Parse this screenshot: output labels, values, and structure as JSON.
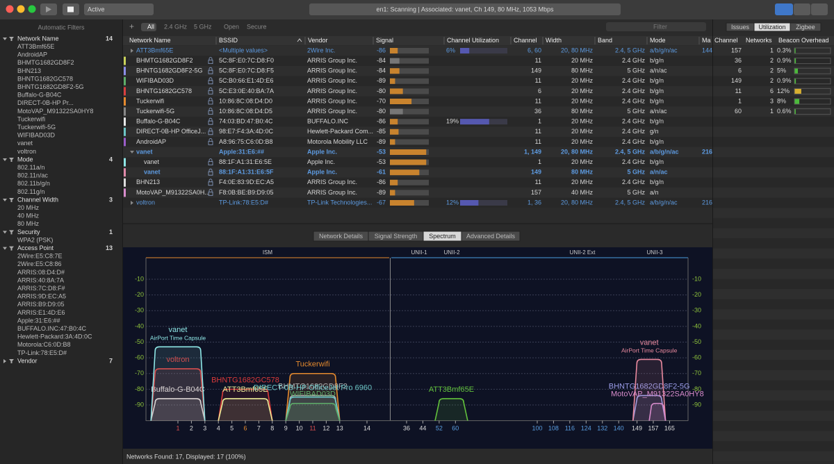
{
  "toolbar": {
    "mode": "Active",
    "status": "en1: Scanning  |  Associated: vanet, Ch 149, 80 MHz, 1053 Mbps"
  },
  "sidebar": {
    "title": "Automatic Filters",
    "groups": [
      {
        "name": "Network Name",
        "count": 14,
        "items": [
          "ATT3Bmf65E",
          "AndroidAP",
          "BHMTG1682GD8F2",
          "BHN213",
          "BHNTG1682GC578",
          "BHNTG1682GD8F2-5G",
          "Buffalo-G-B04C",
          "DIRECT-0B-HP Pr...",
          "MotoVAP_M91322SA0HY8",
          "Tuckerwifi",
          "Tuckerwifi-5G",
          "WIFIBAD03D",
          "vanet",
          "voltron"
        ]
      },
      {
        "name": "Mode",
        "count": 4,
        "items": [
          "802.11a/n",
          "802.11n/ac",
          "802.11b/g/n",
          "802.11g/n"
        ]
      },
      {
        "name": "Channel Width",
        "count": 3,
        "items": [
          "20 MHz",
          "40 MHz",
          "80 MHz"
        ]
      },
      {
        "name": "Security",
        "count": 1,
        "items": [
          "WPA2 (PSK)"
        ]
      },
      {
        "name": "Access Point",
        "count": 13,
        "items": [
          "2Wire:E5:C8:7E",
          "2Wire:E5:C8:86",
          "ARRIS:08:D4:D#",
          "ARRIS:40:8A:7A",
          "ARRIS:7C:D8:F#",
          "ARRIS:9D:EC:A5",
          "ARRIS:B9:D9:05",
          "ARRIS:E1:4D:E6",
          "Apple:31:E6:##",
          "BUFFALO.INC:47:B0:4C",
          "Hewlett-Packard:3A:4D:0C",
          "Motorola:C6:0D:B8",
          "TP-Link:78:E5:D#"
        ]
      },
      {
        "name": "Vendor",
        "count": 7
      }
    ]
  },
  "filters": {
    "add": "+",
    "options": [
      "All",
      "2.4 GHz",
      "5 GHz",
      "Open",
      "Secure"
    ],
    "search": "Filter"
  },
  "table": {
    "columns": [
      "Network Name",
      "BSSID",
      "Vendor",
      "Signal",
      "Channel Utilization",
      "Channel",
      "Width",
      "Band",
      "Mode",
      "Ma"
    ],
    "rows": [
      {
        "cells": [
          "ATT3Bmf65E",
          "<Multiple values>",
          "2Wire Inc.",
          -86,
          "6%",
          "6, 60",
          "20, 80 MHz",
          "2.4, 5 GHz",
          "a/b/g/n/ac",
          144
        ]
      },
      {
        "cells": [
          "BHMTG1682GD8F2",
          "5C:8F:E0:7C:D8:F0",
          "ARRIS Group Inc.",
          -84,
          null,
          "11",
          "20 MHz",
          "2.4 GHz",
          "b/g/n",
          null
        ],
        "color": "#c9d25a"
      },
      {
        "cells": [
          "BHNTG1682GD8F2-5G",
          "5C:8F:E0:7C:D8:F5",
          "ARRIS Group Inc.",
          -84,
          null,
          "149",
          "80 MHz",
          "5 GHz",
          "a/n/ac",
          null
        ],
        "color": "#8c8ee8"
      },
      {
        "cells": [
          "WIFIBAD03D",
          "5C:B0:66:E1:4D:E6",
          "ARRIS Group Inc.",
          -89,
          null,
          "11",
          "20 MHz",
          "2.4 GHz",
          "b/g/n",
          null
        ],
        "color": "#5fae6a"
      },
      {
        "cells": [
          "BHNTG1682GC578",
          "5C:E3:0E:40:BA:7A",
          "ARRIS Group Inc.",
          -80,
          null,
          "6",
          "20 MHz",
          "2.4 GHz",
          "b/g/n",
          null
        ],
        "color": "#d94040"
      },
      {
        "cells": [
          "Tuckerwifi",
          "10:86:8C:08:D4:D0",
          "ARRIS Group Inc.",
          -70,
          null,
          "11",
          "20 MHz",
          "2.4 GHz",
          "b/g/n",
          null
        ],
        "color": "#e58a2e"
      },
      {
        "cells": [
          "Tuckerwifi-5G",
          "10:86:8C:08:D4:D5",
          "ARRIS Group Inc.",
          -80,
          null,
          "36",
          "80 MHz",
          "5 GHz",
          "a/n/ac",
          null
        ],
        "color": "#888888"
      },
      {
        "cells": [
          "Buffalo-G-B04C",
          "74:03:BD:47:B0:4C",
          "BUFFALO.INC",
          -86,
          "19%",
          "1",
          "20 MHz",
          "2.4 GHz",
          "b/g/n",
          null
        ],
        "color": "#e8e8e8"
      },
      {
        "cells": [
          "DIRECT-0B-HP OfficeJ...",
          "98:E7:F4:3A:4D:0C",
          "Hewlett-Packard Com...",
          -85,
          null,
          "11",
          "20 MHz",
          "2.4 GHz",
          "g/n",
          null
        ],
        "color": "#6cc6c6"
      },
      {
        "cells": [
          "AndroidAP",
          "A8:96:75:C6:0D:B8",
          "Motorola Mobility LLC",
          -89,
          null,
          "11",
          "20 MHz",
          "2.4 GHz",
          "b/g/n",
          null
        ],
        "color": "#9a5cc8"
      },
      {
        "cells": [
          "vanet",
          "Apple:31:E6:##",
          "Apple Inc.",
          -53,
          null,
          "1, 149",
          "20, 80 MHz",
          "2.4, 5 GHz",
          "a/b/g/n/ac",
          216
        ]
      },
      {
        "cells": [
          "vanet",
          "88:1F:A1:31:E6:5E",
          "Apple Inc.",
          -53,
          null,
          "1",
          "20 MHz",
          "2.4 GHz",
          "b/g/n",
          null
        ],
        "color": "#8ee6e6"
      },
      {
        "cells": [
          "vanet",
          "88:1F:A1:31:E6:5F",
          "Apple Inc.",
          -61,
          null,
          "149",
          "80 MHz",
          "5 GHz",
          "a/n/ac",
          null
        ],
        "color": "#e08aaa"
      },
      {
        "cells": [
          "BHN213",
          "F4:0E:83:9D:EC:A5",
          "ARRIS Group Inc.",
          -86,
          null,
          "11",
          "20 MHz",
          "2.4 GHz",
          "b/g/n",
          null
        ],
        "color": "#dddddd"
      },
      {
        "cells": [
          "MotoVAP_M91322SA0H...",
          "F8:0B:BE:B9:D9:05",
          "ARRIS Group Inc.",
          -89,
          null,
          "157",
          "40 MHz",
          "5 GHz",
          "a/n",
          null
        ],
        "color": "#d88ccc"
      },
      {
        "cells": [
          "voltron",
          "TP-Link:78:E5:D#",
          "TP-Link Technologies...",
          -67,
          "12%",
          "1, 36",
          "20, 80 MHz",
          "2.4, 5 GHz",
          "a/b/g/n/ac",
          216
        ]
      }
    ]
  },
  "panel": {
    "tabs": [
      "Issues",
      "Utilization",
      "Zigbee"
    ],
    "columns": [
      "Channel",
      "Networks",
      "Beacon Overhead"
    ],
    "rows": [
      [
        157,
        1,
        "0.3%"
      ],
      [
        36,
        2,
        "0.9%"
      ],
      [
        6,
        2,
        "5%"
      ],
      [
        149,
        2,
        "0.9%"
      ],
      [
        11,
        6,
        "12%"
      ],
      [
        1,
        3,
        "8%"
      ],
      [
        60,
        1,
        "0.6%"
      ]
    ]
  },
  "details": {
    "tabs": [
      "Network Details",
      "Signal Strength",
      "Spectrum",
      "Advanced Details"
    ]
  },
  "spectrum": {
    "bands": [
      "ISM",
      "UNII-1",
      "UNII-2",
      "UNII-2 Ext",
      "UNII-3"
    ],
    "yticks": [
      -10,
      -20,
      -30,
      -40,
      -50,
      -60,
      -70,
      -80,
      -90
    ],
    "channels": [
      1,
      2,
      3,
      4,
      5,
      6,
      7,
      8,
      9,
      10,
      11,
      12,
      13,
      14,
      36,
      44,
      52,
      60,
      100,
      108,
      116,
      124,
      132,
      140,
      149,
      157,
      165
    ],
    "networks": [
      {
        "label": "Buffalo-G-B04C",
        "signal": -86,
        "center": 1,
        "width": 20,
        "color": "#e6e6e6"
      },
      {
        "label": "voltron",
        "signal": -67,
        "center": 1,
        "width": 20,
        "color": "#e03a3a"
      },
      {
        "label": "vanet",
        "sub": "AirPort Time Capsule",
        "signal": -53,
        "center": 1,
        "width": 20,
        "color": "#8ee6e6"
      },
      {
        "label": "BHNTG1682GC578",
        "signal": -80,
        "center": 6,
        "width": 20,
        "color": "#d93a3a"
      },
      {
        "label": "ATT3Bmf65E",
        "signal": -86,
        "center": 6,
        "width": 20,
        "color": "#eeee99"
      },
      {
        "label": "Tuckerwifi",
        "signal": -70,
        "center": 11,
        "width": 20,
        "color": "#e58a2e"
      },
      {
        "label": "BHMTG1682GD8F2",
        "signal": -84,
        "center": 11,
        "width": 20,
        "color": "#b0b0b0"
      },
      {
        "label": "DIRECT-0B-HP OfficeJet Pro 6960",
        "signal": -85,
        "center": 11,
        "width": 20,
        "color": "#6cc6c6"
      },
      {
        "label": "WIFIBAD03D",
        "signal": -89,
        "center": 11,
        "width": 20,
        "color": "#5fae6a"
      },
      {
        "label": "ATT3Bmf65E",
        "signal": -86,
        "center": 58,
        "width": 80,
        "color": "#62c23c"
      },
      {
        "label": "BHNTG1682GD8F2-5G",
        "signal": -84,
        "center": 155,
        "width": 80,
        "color": "#9a9ce8"
      },
      {
        "label": "vanet",
        "sub": "AirPort Time Capsule",
        "signal": -61,
        "center": 155,
        "width": 80,
        "color": "#e8899e"
      },
      {
        "label": "MotoVAP_M91322SA0HY8",
        "signal": -89,
        "center": 159,
        "width": 40,
        "color": "#d88ccc"
      }
    ]
  },
  "statusbar": "Networks Found: 17, Displayed: 17 (100%)"
}
